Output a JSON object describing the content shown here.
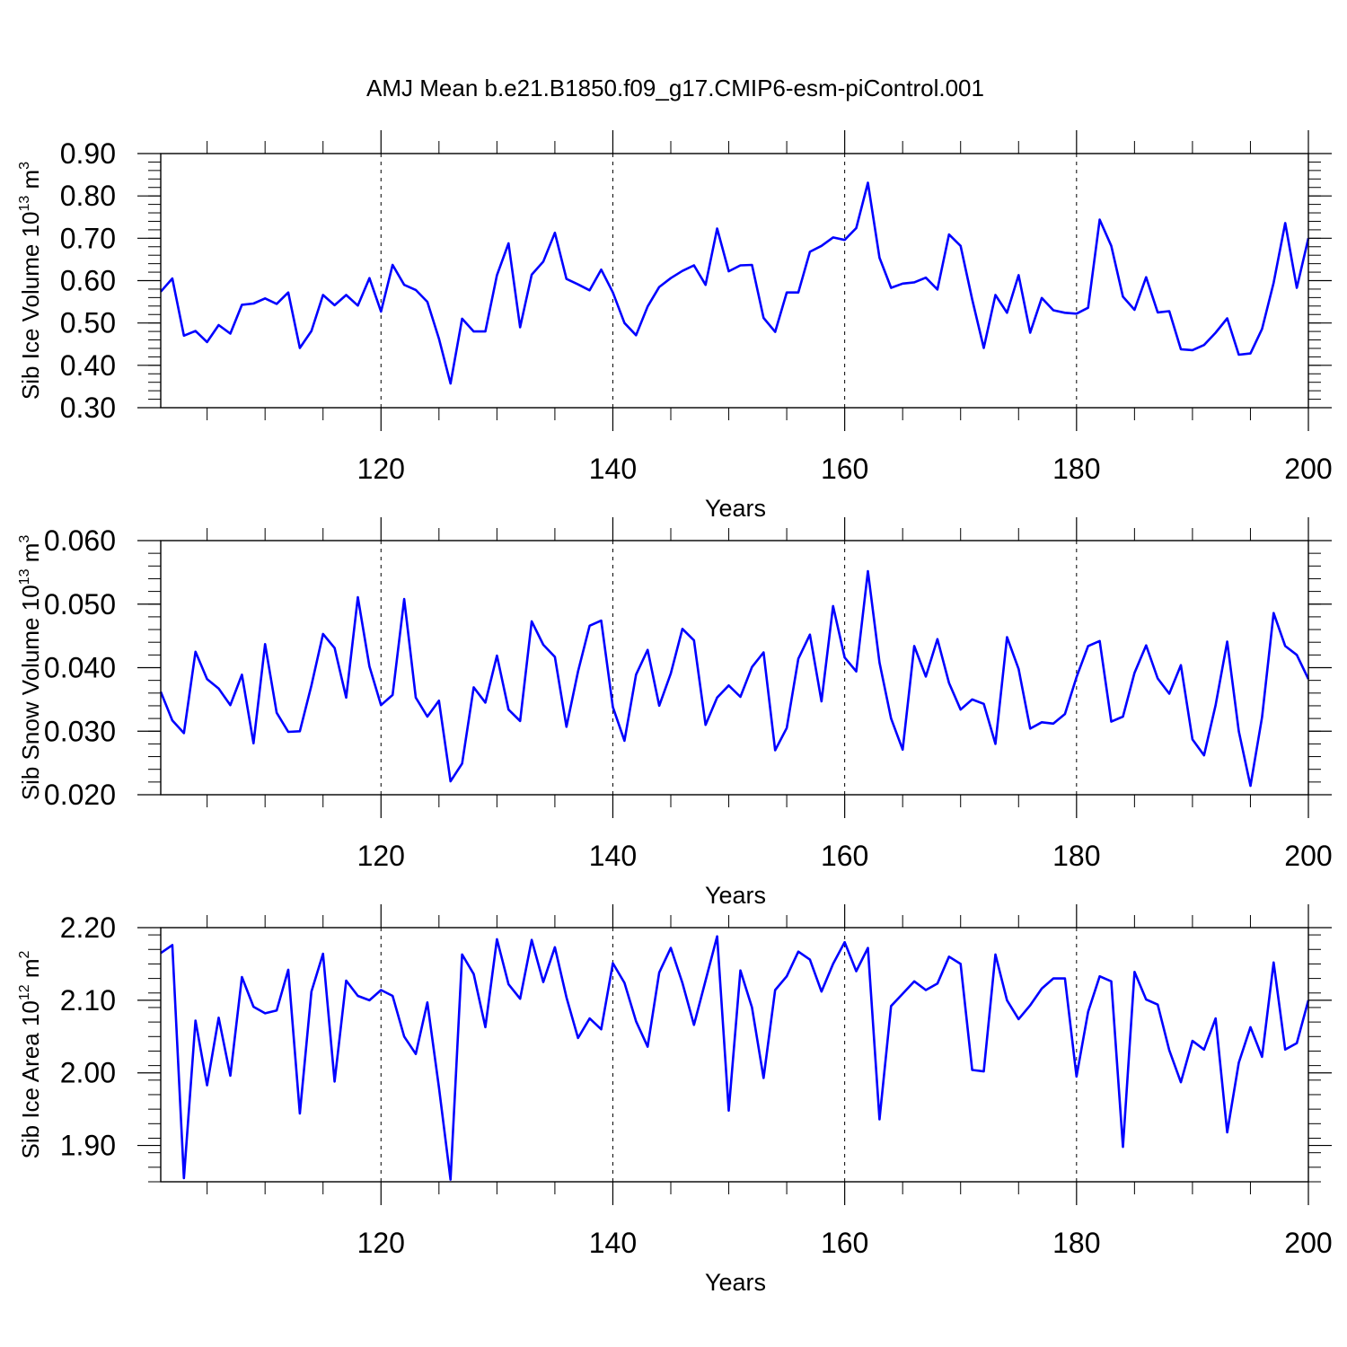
{
  "title": "AMJ Mean b.e21.B1850.f09_g17.CMIP6-esm-piControl.001",
  "chart_data": [
    {
      "type": "line",
      "xlabel": "Years",
      "ylabel": "Sib Ice Volume 10",
      "ylabel_exp": "13",
      "ylabel_unit": " m",
      "ylabel_unit_exp": "3",
      "xlim": [
        101,
        200
      ],
      "ylim": [
        0.3,
        0.9
      ],
      "xticks": [
        120,
        140,
        160,
        180,
        200
      ],
      "xtick_labels": [
        "120",
        "140",
        "160",
        "180",
        "200"
      ],
      "yticks": [
        0.3,
        0.4,
        0.5,
        0.6,
        0.7,
        0.8,
        0.9
      ],
      "ytick_labels": [
        "0.30",
        "0.40",
        "0.50",
        "0.60",
        "0.70",
        "0.80",
        "0.90"
      ],
      "grid": "dashed vertical lines at major x ticks",
      "line_color": "#0000ff",
      "x_start": 101,
      "values": [
        0.574,
        0.605,
        0.47,
        0.481,
        0.455,
        0.495,
        0.475,
        0.543,
        0.546,
        0.558,
        0.545,
        0.572,
        0.441,
        0.481,
        0.566,
        0.542,
        0.566,
        0.541,
        0.606,
        0.527,
        0.637,
        0.59,
        0.578,
        0.55,
        0.463,
        0.357,
        0.51,
        0.48,
        0.48,
        0.613,
        0.688,
        0.49,
        0.614,
        0.645,
        0.713,
        0.604,
        0.591,
        0.577,
        0.626,
        0.572,
        0.5,
        0.471,
        0.539,
        0.585,
        0.606,
        0.623,
        0.636,
        0.59,
        0.723,
        0.622,
        0.636,
        0.637,
        0.512,
        0.479,
        0.572,
        0.572,
        0.668,
        0.682,
        0.702,
        0.696,
        0.724,
        0.831,
        0.654,
        0.583,
        0.593,
        0.596,
        0.607,
        0.579,
        0.709,
        0.682,
        0.556,
        0.441,
        0.566,
        0.524,
        0.613,
        0.477,
        0.559,
        0.53,
        0.524,
        0.522,
        0.536,
        0.744,
        0.682,
        0.562,
        0.531,
        0.608,
        0.525,
        0.528,
        0.438,
        0.436,
        0.448,
        0.477,
        0.511,
        0.425,
        0.428,
        0.486,
        0.595,
        0.736,
        0.583,
        0.7
      ]
    },
    {
      "type": "line",
      "xlabel": "Years",
      "ylabel": "Sib Snow Volume 10",
      "ylabel_exp": "13",
      "ylabel_unit": " m",
      "ylabel_unit_exp": "3",
      "xlim": [
        101,
        200
      ],
      "ylim": [
        0.02,
        0.06
      ],
      "xticks": [
        120,
        140,
        160,
        180,
        200
      ],
      "xtick_labels": [
        "120",
        "140",
        "160",
        "180",
        "200"
      ],
      "yticks": [
        0.02,
        0.03,
        0.04,
        0.05,
        0.06
      ],
      "ytick_labels": [
        "0.020",
        "0.030",
        "0.040",
        "0.050",
        "0.060"
      ],
      "grid": "dashed vertical lines at major x ticks",
      "line_color": "#0000ff",
      "x_start": 101,
      "values": [
        0.0362,
        0.0317,
        0.0297,
        0.0425,
        0.0382,
        0.0367,
        0.0341,
        0.0389,
        0.0281,
        0.0437,
        0.0329,
        0.0299,
        0.03,
        0.0372,
        0.0453,
        0.0431,
        0.0353,
        0.0511,
        0.0402,
        0.0341,
        0.0357,
        0.0508,
        0.0353,
        0.0323,
        0.0348,
        0.0221,
        0.0249,
        0.0369,
        0.0345,
        0.0419,
        0.0334,
        0.0316,
        0.0473,
        0.0436,
        0.0417,
        0.0307,
        0.0394,
        0.0466,
        0.0474,
        0.0338,
        0.0285,
        0.0389,
        0.0428,
        0.034,
        0.0391,
        0.0461,
        0.0443,
        0.031,
        0.0353,
        0.0372,
        0.0354,
        0.0401,
        0.0424,
        0.027,
        0.0305,
        0.0414,
        0.0452,
        0.0347,
        0.0497,
        0.0416,
        0.0394,
        0.0552,
        0.0408,
        0.032,
        0.0271,
        0.0434,
        0.0386,
        0.0445,
        0.0376,
        0.0334,
        0.035,
        0.0343,
        0.028,
        0.0448,
        0.0398,
        0.0304,
        0.0314,
        0.0312,
        0.0327,
        0.0385,
        0.0434,
        0.0442,
        0.0315,
        0.0323,
        0.0392,
        0.0435,
        0.0383,
        0.0359,
        0.0404,
        0.0287,
        0.0262,
        0.0341,
        0.0441,
        0.03,
        0.0214,
        0.0322,
        0.0486,
        0.0434,
        0.042,
        0.0382
      ]
    },
    {
      "type": "line",
      "xlabel": "Years",
      "ylabel": "Sib Ice Area 10",
      "ylabel_exp": "12",
      "ylabel_unit": " m",
      "ylabel_unit_exp": "2",
      "xlim": [
        101,
        200
      ],
      "ylim": [
        1.85,
        2.2
      ],
      "xticks": [
        120,
        140,
        160,
        180,
        200
      ],
      "xtick_labels": [
        "120",
        "140",
        "160",
        "180",
        "200"
      ],
      "yticks": [
        1.9,
        2.0,
        2.1,
        2.2
      ],
      "ytick_labels": [
        "1.90",
        "2.00",
        "2.10",
        "2.20"
      ],
      "grid": "dashed vertical lines at major x ticks",
      "line_color": "#0000ff",
      "x_start": 101,
      "values": [
        2.165,
        2.176,
        1.855,
        2.072,
        1.983,
        2.076,
        1.996,
        2.132,
        2.091,
        2.082,
        2.086,
        2.142,
        1.944,
        2.112,
        2.164,
        1.988,
        2.127,
        2.106,
        2.1,
        2.114,
        2.106,
        2.05,
        2.026,
        2.097,
        1.98,
        1.853,
        2.163,
        2.136,
        2.063,
        2.184,
        2.122,
        2.102,
        2.183,
        2.125,
        2.173,
        2.104,
        2.048,
        2.075,
        2.06,
        2.151,
        2.124,
        2.071,
        2.036,
        2.138,
        2.172,
        2.124,
        2.066,
        2.127,
        2.188,
        1.948,
        2.141,
        2.09,
        1.993,
        2.114,
        2.133,
        2.167,
        2.156,
        2.112,
        2.15,
        2.18,
        2.14,
        2.172,
        1.936,
        2.092,
        2.109,
        2.126,
        2.114,
        2.123,
        2.16,
        2.15,
        2.004,
        2.002,
        2.163,
        2.1,
        2.074,
        2.093,
        2.116,
        2.13,
        2.13,
        1.995,
        2.084,
        2.133,
        2.126,
        1.898,
        2.139,
        2.101,
        2.094,
        2.031,
        1.987,
        2.044,
        2.032,
        2.075,
        1.918,
        2.014,
        2.063,
        2.022,
        2.152,
        2.032,
        2.041,
        2.1
      ]
    }
  ]
}
